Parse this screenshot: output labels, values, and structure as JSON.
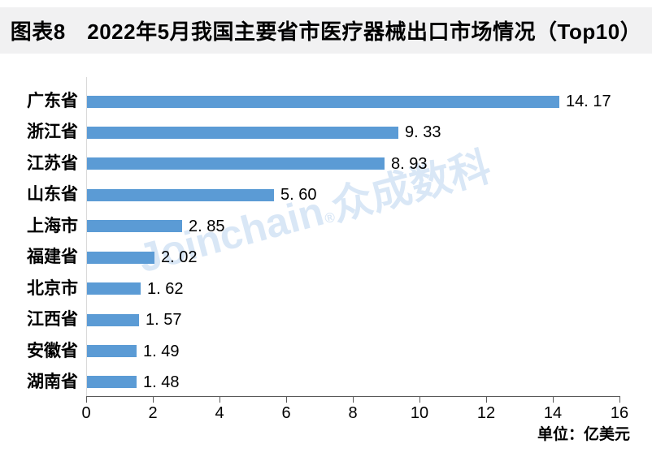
{
  "title": "图表8　2022年5月我国主要省市医疗器械出口市场情况（Top10）",
  "chart_data": {
    "type": "bar",
    "orientation": "horizontal",
    "title": "图表8　2022年5月我国主要省市医疗器械出口市场情况（Top10）",
    "categories": [
      "广东省",
      "浙江省",
      "江苏省",
      "山东省",
      "上海市",
      "福建省",
      "北京市",
      "江西省",
      "安徽省",
      "湖南省"
    ],
    "values": [
      14.17,
      9.33,
      8.93,
      5.6,
      2.85,
      2.02,
      1.62,
      1.57,
      1.49,
      1.48
    ],
    "value_labels": [
      "14. 17",
      "9. 33",
      "8. 93",
      "5. 60",
      "2. 85",
      "2. 02",
      "1. 62",
      "1. 57",
      "1. 49",
      "1. 48"
    ],
    "x_ticks": [
      0,
      2,
      4,
      6,
      8,
      10,
      12,
      14,
      16
    ],
    "xlim": [
      0,
      16
    ],
    "xlabel": "",
    "ylabel": "",
    "unit_label": "单位：亿美元",
    "bar_color": "#5B9BD5",
    "grid": false,
    "legend": false
  },
  "watermark": {
    "brand": "Joinchain",
    "reg_mark": "®",
    "cn_name": "众成数科",
    "color": "#D9E7F6"
  },
  "colors": {
    "background": "#FFFFFF",
    "banner_bg": "#F1F1F2",
    "title_text": "#000000",
    "bar": "#5B9BD5",
    "axis_line": "#595959",
    "y_baseline": "#D9D9D9",
    "label_text": "#000000"
  }
}
